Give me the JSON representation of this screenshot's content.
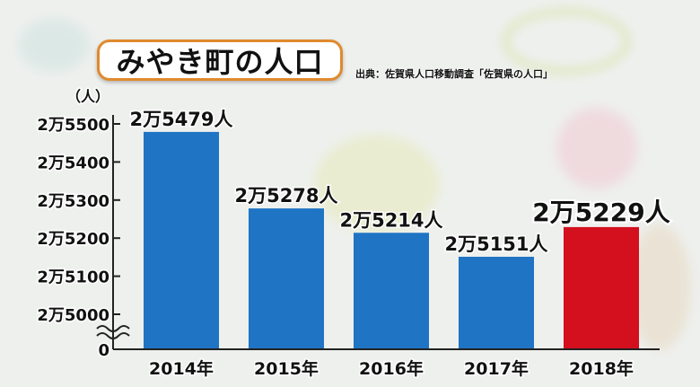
{
  "title": "みやき町の人口",
  "source": "出典：佐賀県人口移動調査「佐賀県の人口」",
  "colors": {
    "bar": "#1f74c4",
    "highlight": "#d40f1e",
    "title_border": "#e08a2e"
  },
  "chart_data": {
    "type": "bar",
    "categories": [
      "2014年",
      "2015年",
      "2016年",
      "2017年",
      "2018年"
    ],
    "values": [
      25479,
      25278,
      25214,
      25151,
      25229
    ],
    "value_labels": [
      "2万5479人",
      "2万5278人",
      "2万5214人",
      "2万5151人",
      "2万5229人"
    ],
    "highlight_index": 4,
    "y_unit": "（人）",
    "y_ticks": [
      {
        "value": 25500,
        "label": "2万5500"
      },
      {
        "value": 25400,
        "label": "2万5400"
      },
      {
        "value": 25300,
        "label": "2万5300"
      },
      {
        "value": 25200,
        "label": "2万5200"
      },
      {
        "value": 25100,
        "label": "2万5100"
      },
      {
        "value": 25000,
        "label": "2万5000"
      }
    ],
    "y_zero_label": "0",
    "axis_break": true,
    "ylim": [
      25000,
      25500
    ],
    "grid": false
  }
}
